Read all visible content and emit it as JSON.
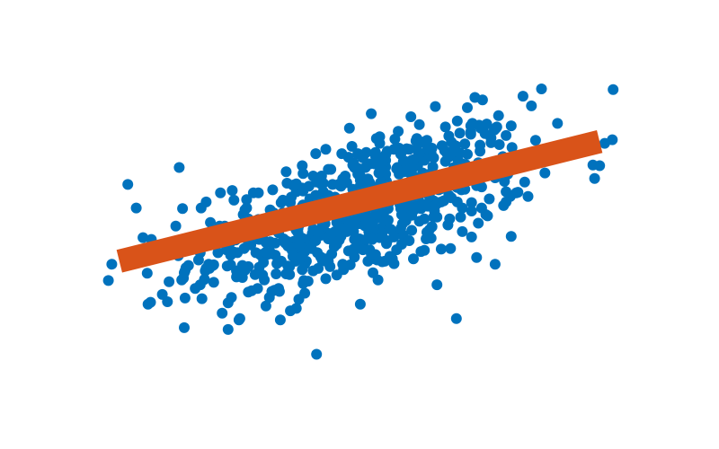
{
  "chart_data": {
    "type": "scatter",
    "xlim": [
      -3.2,
      3.2
    ],
    "ylim": [
      -2.6,
      2.6
    ],
    "axes_visible": false,
    "grid": false,
    "colors": {
      "points": "#0072BD",
      "fit_line": "#D95319"
    },
    "series": [
      {
        "kind": "points",
        "count": 700,
        "x_mean": 0.0,
        "x_sd": 1.0,
        "y_mean": 0.0,
        "y_sd": 0.7,
        "correlation": 0.6,
        "points": [
          {
            "x": -2.98,
            "y": -1.15
          },
          {
            "x": -2.94,
            "y": -0.88
          },
          {
            "x": -2.75,
            "y": 0.44
          },
          {
            "x": -2.65,
            "y": 0.05
          },
          {
            "x": -2.14,
            "y": 0.72
          },
          {
            "x": -1.56,
            "y": -1.52
          },
          {
            "x": -1.43,
            "y": -1.8
          },
          {
            "x": -1.42,
            "y": -1.78
          },
          {
            "x": 2.85,
            "y": 0.75
          },
          {
            "x": 2.52,
            "y": 1.09
          },
          {
            "x": 2.18,
            "y": 0.99
          },
          {
            "x": 1.65,
            "y": 1.58
          },
          {
            "x": 1.28,
            "y": 1.71
          },
          {
            "x": 1.15,
            "y": -1.78
          },
          {
            "x": 0.14,
            "y": 1.61
          },
          {
            "x": 0.46,
            "y": 1.32
          },
          {
            "x": 2.0,
            "y": 0.24
          },
          {
            "x": 1.39,
            "y": -0.77
          },
          {
            "x": 1.61,
            "y": -0.88
          },
          {
            "x": -0.72,
            "y": -1.46
          }
        ]
      },
      {
        "kind": "line",
        "points": [
          {
            "x": -2.85,
            "y": -0.83
          },
          {
            "x": 2.85,
            "y": 1.15
          }
        ]
      }
    ]
  }
}
